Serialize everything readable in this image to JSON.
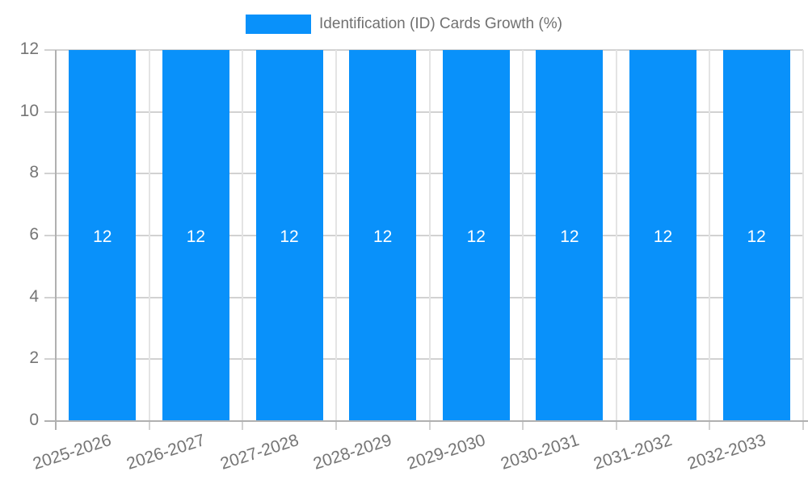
{
  "legend": {
    "label": "Identification (ID) Cards Growth (%)"
  },
  "colors": {
    "bar": "#0991fa",
    "bar_label": "#ffffff",
    "axis": "#b0b0b0",
    "grid": "#e4e4e4",
    "tick": "#d2d2d2",
    "text": "#757575"
  },
  "chart_data": {
    "type": "bar",
    "title": "",
    "xlabel": "",
    "ylabel": "",
    "categories": [
      "2025-2026",
      "2026-2027",
      "2027-2028",
      "2028-2029",
      "2029-2030",
      "2030-2031",
      "2031-2032",
      "2032-2033"
    ],
    "series": [
      {
        "name": "Identification (ID) Cards Growth (%)",
        "values": [
          12,
          12,
          12,
          12,
          12,
          12,
          12,
          12
        ]
      }
    ],
    "bar_labels": [
      "12",
      "12",
      "12",
      "12",
      "12",
      "12",
      "12",
      "12"
    ],
    "ylim": [
      0,
      12
    ],
    "yticks": [
      0,
      2,
      4,
      6,
      8,
      10,
      12
    ],
    "grid": true,
    "legend_position": "top",
    "x_label_rotation_deg": -18
  }
}
